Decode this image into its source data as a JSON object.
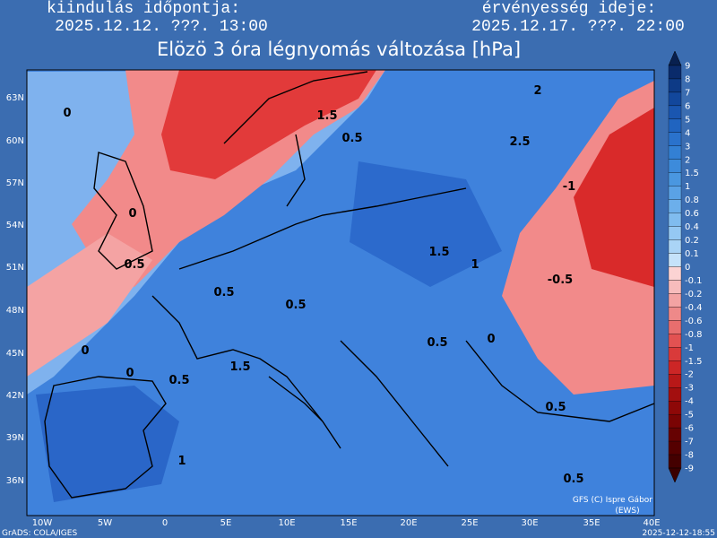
{
  "header": {
    "left_label": "kiindulás időpontja:",
    "left_value": "2025.12.12. ???. 13:00",
    "right_label": "érvényesség ideje:",
    "right_value": "2025.12.17. ???. 22:00",
    "title": "Elözö 3 óra légnyomás változása [hPa]"
  },
  "map": {
    "lat_labels": [
      "63N",
      "60N",
      "57N",
      "54N",
      "51N",
      "48N",
      "45N",
      "42N",
      "39N",
      "36N"
    ],
    "lon_labels": [
      "10W",
      "5W",
      "0",
      "5E",
      "10E",
      "15E",
      "20E",
      "25E",
      "30E",
      "35E",
      "40E"
    ],
    "contour_labels": [
      "0",
      "1.5",
      "0.5",
      "2",
      "2.5",
      "-1",
      "0",
      "0.5",
      "1.5",
      "1",
      "-0.5",
      "0.5",
      "0.5",
      "0.5",
      "0",
      "0",
      "1.5",
      "0",
      "0.5",
      "0.5",
      "1",
      "0.5"
    ]
  },
  "colorbar": {
    "labels": [
      "9",
      "8",
      "7",
      "6",
      "5",
      "4",
      "3",
      "2",
      "1.5",
      "1",
      "0.8",
      "0.6",
      "0.4",
      "0.2",
      "0.1",
      "0",
      "-0.1",
      "-0.2",
      "-0.4",
      "-0.6",
      "-0.8",
      "-1",
      "-1.5",
      "-2",
      "-3",
      "-4",
      "-5",
      "-6",
      "-7",
      "-8",
      "-9"
    ]
  },
  "footer": {
    "software": "GrADS: COLA/IGES",
    "timestamp": "2025-12-12-18:55",
    "credit": "GFS (C) Ispre Gábor",
    "credit2": "(EWS)"
  }
}
